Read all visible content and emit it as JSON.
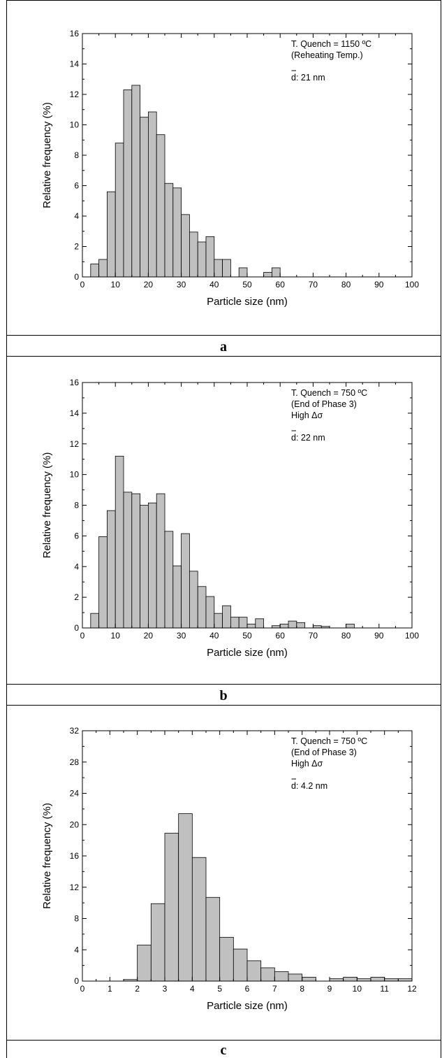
{
  "chart_data": [
    {
      "type": "bar",
      "panel_label": "a",
      "xlabel": "Particle size (nm)",
      "ylabel": "Relative frequency (%)",
      "xlim": [
        0,
        100
      ],
      "ylim": [
        0,
        16
      ],
      "xticks": [
        0,
        10,
        20,
        30,
        40,
        50,
        60,
        70,
        80,
        90,
        100
      ],
      "yticks": [
        0,
        2,
        4,
        6,
        8,
        10,
        12,
        14,
        16
      ],
      "annotation_lines": [
        "T. Quench = 1150 ºC",
        "(Reheating Temp.)"
      ],
      "mean_label": "d: 21 nm",
      "bin_width": 2.5,
      "bins_start": [
        2.5,
        5,
        7.5,
        10,
        12.5,
        15,
        17.5,
        20,
        22.5,
        25,
        27.5,
        30,
        32.5,
        35,
        37.5,
        40,
        42.5,
        45,
        47.5,
        50,
        52.5,
        55,
        57.5
      ],
      "values": [
        0.85,
        1.15,
        5.6,
        8.8,
        12.3,
        12.6,
        10.5,
        10.85,
        9.35,
        6.15,
        5.85,
        4.1,
        2.95,
        2.3,
        2.65,
        1.15,
        1.15,
        0,
        0.6,
        0,
        0,
        0.3,
        0.6
      ],
      "grid": false
    },
    {
      "type": "bar",
      "panel_label": "b",
      "xlabel": "Particle size (nm)",
      "ylabel": "Relative frequency (%)",
      "xlim": [
        0,
        100
      ],
      "ylim": [
        0,
        16
      ],
      "xticks": [
        0,
        10,
        20,
        30,
        40,
        50,
        60,
        70,
        80,
        90,
        100
      ],
      "yticks": [
        0,
        2,
        4,
        6,
        8,
        10,
        12,
        14,
        16
      ],
      "annotation_lines": [
        "T. Quench = 750 ºC",
        "(End of Phase 3)",
        "High Δσ"
      ],
      "mean_label": "d: 22 nm",
      "bin_width": 2.5,
      "bins_start": [
        2.5,
        5,
        7.5,
        10,
        12.5,
        15,
        17.5,
        20,
        22.5,
        25,
        27.5,
        30,
        32.5,
        35,
        37.5,
        40,
        42.5,
        45,
        47.5,
        50,
        52.5,
        55,
        57.5,
        60,
        62.5,
        65,
        67.5,
        70,
        72.5,
        75,
        77.5,
        80
      ],
      "values": [
        0.95,
        5.95,
        7.65,
        11.2,
        8.85,
        8.75,
        8.0,
        8.15,
        8.75,
        6.3,
        4.05,
        6.15,
        3.7,
        2.7,
        2.05,
        0.95,
        1.45,
        0.7,
        0.7,
        0.25,
        0.6,
        0,
        0.15,
        0.25,
        0.45,
        0.35,
        0,
        0.15,
        0.1,
        0,
        0,
        0.25
      ],
      "grid": false
    },
    {
      "type": "bar",
      "panel_label": "c",
      "xlabel": "Particle size (nm)",
      "ylabel": "Relative frequency (%)",
      "xlim": [
        0,
        12
      ],
      "ylim": [
        0,
        32
      ],
      "xticks": [
        0,
        1,
        2,
        3,
        4,
        5,
        6,
        7,
        8,
        9,
        10,
        11,
        12
      ],
      "yticks": [
        0,
        4,
        8,
        12,
        16,
        20,
        24,
        28,
        32
      ],
      "annotation_lines": [
        "T. Quench = 750 ºC",
        "(End of Phase 3)",
        "High Δσ"
      ],
      "mean_label": "d: 4.2 nm",
      "bin_width": 0.5,
      "bins_start": [
        1.5,
        2,
        2.5,
        3,
        3.5,
        4,
        4.5,
        5,
        5.5,
        6,
        6.5,
        7,
        7.5,
        8,
        8.5,
        9,
        9.5,
        10,
        10.5,
        11,
        11.5
      ],
      "values": [
        0.2,
        4.6,
        9.9,
        18.9,
        21.4,
        15.8,
        10.7,
        5.6,
        4.1,
        2.6,
        1.7,
        1.2,
        0.9,
        0.5,
        0,
        0.3,
        0.5,
        0.3,
        0.5,
        0.3,
        0.3
      ],
      "grid": false
    }
  ]
}
